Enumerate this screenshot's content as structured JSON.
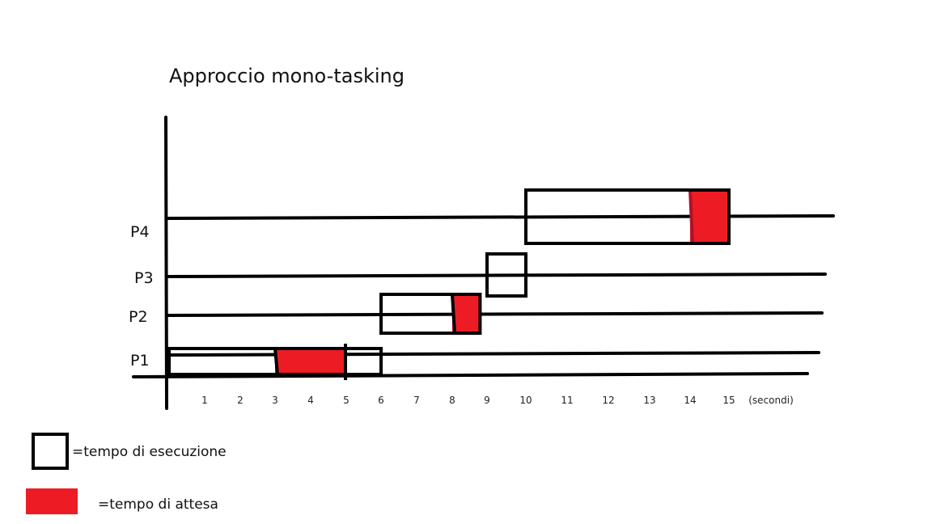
{
  "title": "Approccio mono-tasking",
  "colors": {
    "wait": "#ed1c24",
    "wait_divider": "#b0122a",
    "ink": "#000000"
  },
  "axis": {
    "ticks": [
      "1",
      "2",
      "3",
      "4",
      "5",
      "6",
      "7",
      "8",
      "9",
      "10",
      "11",
      "12",
      "13",
      "14",
      "15"
    ],
    "unit": "(secondi)"
  },
  "processes": [
    {
      "label": "P1",
      "exec": [
        0,
        6
      ],
      "wait": [
        3,
        5
      ]
    },
    {
      "label": "P2",
      "exec": [
        6,
        8.8
      ],
      "wait": [
        8,
        8.8
      ]
    },
    {
      "label": "P3",
      "exec": [
        9,
        10
      ],
      "wait": null
    },
    {
      "label": "P4",
      "exec": [
        10,
        15
      ],
      "wait": [
        14,
        15
      ]
    }
  ],
  "legend": {
    "exec_label": "=tempo di esecuzione",
    "wait_label": "=tempo di attesa"
  }
}
